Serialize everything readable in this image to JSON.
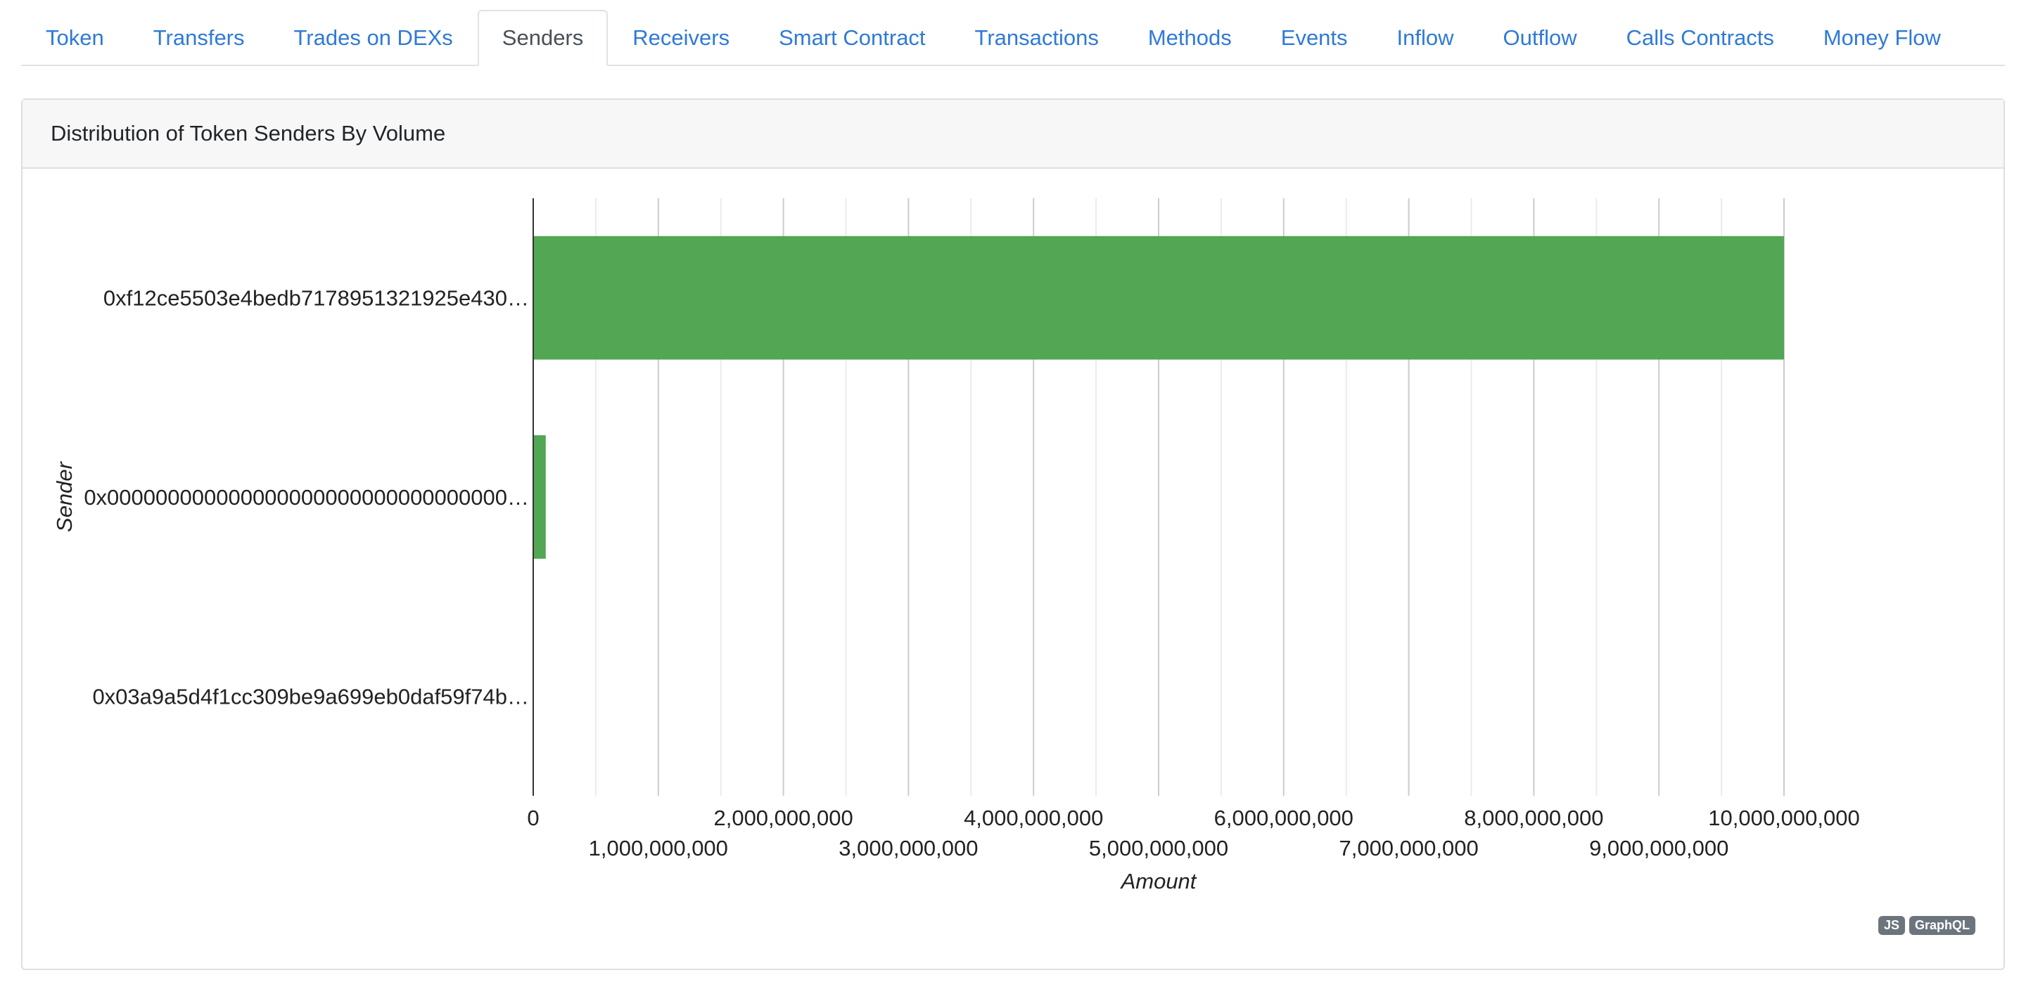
{
  "tabs": [
    {
      "label": "Token",
      "active": false
    },
    {
      "label": "Transfers",
      "active": false
    },
    {
      "label": "Trades on DEXs",
      "active": false
    },
    {
      "label": "Senders",
      "active": true
    },
    {
      "label": "Receivers",
      "active": false
    },
    {
      "label": "Smart Contract",
      "active": false
    },
    {
      "label": "Transactions",
      "active": false
    },
    {
      "label": "Methods",
      "active": false
    },
    {
      "label": "Events",
      "active": false
    },
    {
      "label": "Inflow",
      "active": false
    },
    {
      "label": "Outflow",
      "active": false
    },
    {
      "label": "Calls Contracts",
      "active": false
    },
    {
      "label": "Money Flow",
      "active": false
    }
  ],
  "card": {
    "title": "Distribution of Token Senders By Volume"
  },
  "badges": {
    "js": "JS",
    "graphql": "GraphQL"
  },
  "chart_data": {
    "type": "bar",
    "orientation": "horizontal",
    "categories": [
      "0xf12ce5503e4bedb7178951321925e430…",
      "0x000000000000000000000000000000000…",
      "0x03a9a5d4f1cc309be9a699eb0daf59f74b…"
    ],
    "values": [
      10000000000,
      100000000,
      0
    ],
    "xlabel": "Amount",
    "ylabel": "Sender",
    "xlim": [
      0,
      10000000000
    ],
    "x_ticks": [
      0,
      1000000000,
      2000000000,
      3000000000,
      4000000000,
      5000000000,
      6000000000,
      7000000000,
      8000000000,
      9000000000,
      10000000000
    ],
    "x_tick_labels": [
      "0",
      "1,000,000,000",
      "2,000,000,000",
      "3,000,000,000",
      "4,000,000,000",
      "5,000,000,000",
      "6,000,000,000",
      "7,000,000,000",
      "8,000,000,000",
      "9,000,000,000",
      "10,000,000,000"
    ],
    "bar_color": "#53a653",
    "grid": true
  }
}
